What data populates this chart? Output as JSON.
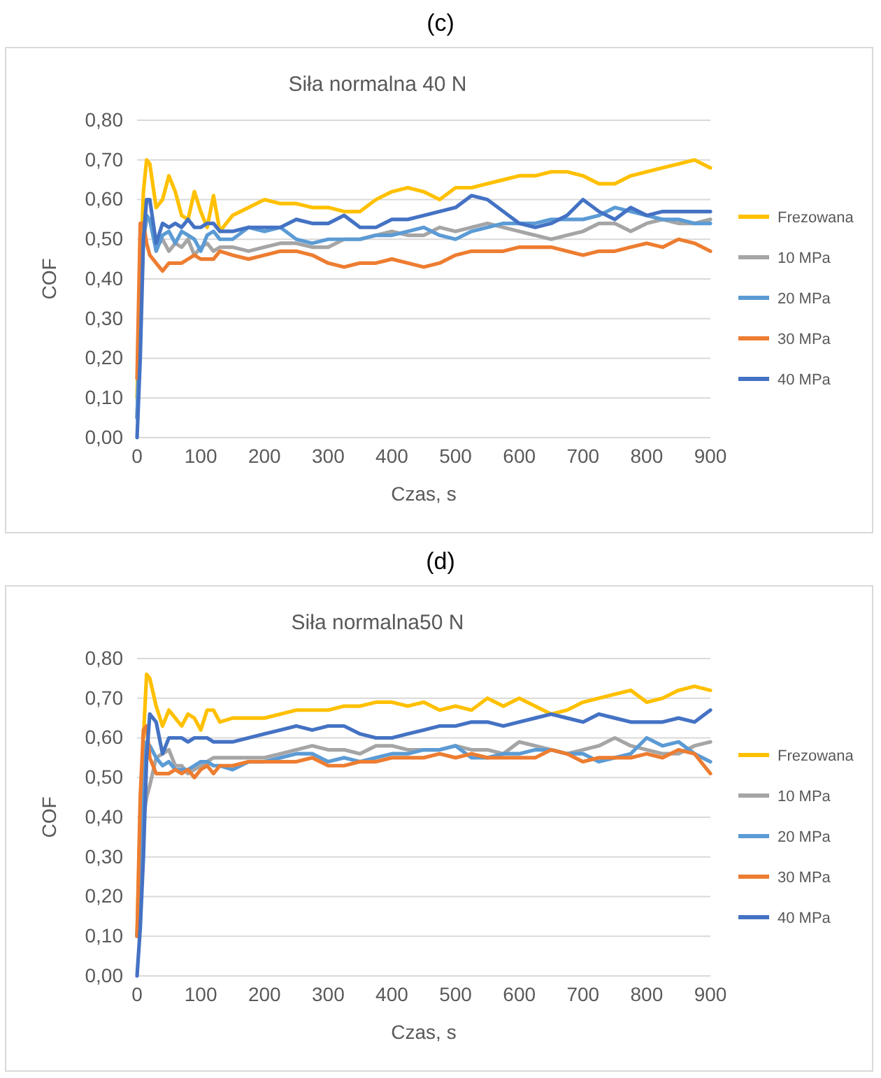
{
  "chart_data": [
    {
      "type": "line",
      "title": "(c)",
      "subtitle": "Siła normalna 40 N",
      "xlabel": "Czas, s",
      "ylabel": "COF",
      "x": [
        0,
        5,
        10,
        15,
        20,
        30,
        40,
        50,
        60,
        70,
        80,
        90,
        100,
        110,
        120,
        130,
        150,
        175,
        200,
        225,
        250,
        275,
        300,
        325,
        350,
        375,
        400,
        425,
        450,
        475,
        500,
        525,
        550,
        575,
        600,
        625,
        650,
        675,
        700,
        725,
        750,
        775,
        800,
        825,
        850,
        875,
        900
      ],
      "series": [
        {
          "name": "Frezowana",
          "color": "#ffc000",
          "values": [
            0.1,
            0.4,
            0.62,
            0.7,
            0.69,
            0.58,
            0.6,
            0.66,
            0.62,
            0.56,
            0.55,
            0.62,
            0.57,
            0.53,
            0.61,
            0.52,
            0.56,
            0.58,
            0.6,
            0.59,
            0.59,
            0.58,
            0.58,
            0.57,
            0.57,
            0.6,
            0.62,
            0.63,
            0.62,
            0.6,
            0.63,
            0.63,
            0.64,
            0.65,
            0.66,
            0.66,
            0.67,
            0.67,
            0.66,
            0.64,
            0.64,
            0.66,
            0.67,
            0.68,
            0.69,
            0.7,
            0.68
          ]
        },
        {
          "name": "10 MPa",
          "color": "#a5a5a5",
          "values": [
            0.05,
            0.3,
            0.5,
            0.55,
            0.55,
            0.48,
            0.5,
            0.47,
            0.49,
            0.48,
            0.5,
            0.46,
            0.48,
            0.49,
            0.47,
            0.48,
            0.48,
            0.47,
            0.48,
            0.49,
            0.49,
            0.48,
            0.48,
            0.5,
            0.5,
            0.51,
            0.52,
            0.51,
            0.51,
            0.53,
            0.52,
            0.53,
            0.54,
            0.53,
            0.52,
            0.51,
            0.5,
            0.51,
            0.52,
            0.54,
            0.54,
            0.52,
            0.54,
            0.55,
            0.54,
            0.54,
            0.55
          ]
        },
        {
          "name": "20 MPa",
          "color": "#5b9bd5",
          "values": [
            0.05,
            0.3,
            0.5,
            0.56,
            0.55,
            0.47,
            0.51,
            0.52,
            0.49,
            0.52,
            0.51,
            0.5,
            0.47,
            0.51,
            0.52,
            0.5,
            0.5,
            0.53,
            0.52,
            0.53,
            0.5,
            0.49,
            0.5,
            0.5,
            0.5,
            0.51,
            0.51,
            0.52,
            0.53,
            0.51,
            0.5,
            0.52,
            0.53,
            0.54,
            0.54,
            0.54,
            0.55,
            0.55,
            0.55,
            0.56,
            0.58,
            0.57,
            0.56,
            0.55,
            0.55,
            0.54,
            0.54
          ]
        },
        {
          "name": "30 MPa",
          "color": "#ed7d31",
          "values": [
            0.15,
            0.54,
            0.54,
            0.49,
            0.46,
            0.44,
            0.42,
            0.44,
            0.44,
            0.44,
            0.45,
            0.46,
            0.45,
            0.45,
            0.45,
            0.47,
            0.46,
            0.45,
            0.46,
            0.47,
            0.47,
            0.46,
            0.44,
            0.43,
            0.44,
            0.44,
            0.45,
            0.44,
            0.43,
            0.44,
            0.46,
            0.47,
            0.47,
            0.47,
            0.48,
            0.48,
            0.48,
            0.47,
            0.46,
            0.47,
            0.47,
            0.48,
            0.49,
            0.48,
            0.5,
            0.49,
            0.47
          ]
        },
        {
          "name": "40 MPa",
          "color": "#4472c4",
          "values": [
            0.0,
            0.2,
            0.5,
            0.6,
            0.6,
            0.49,
            0.54,
            0.53,
            0.54,
            0.53,
            0.55,
            0.53,
            0.53,
            0.54,
            0.54,
            0.52,
            0.52,
            0.53,
            0.53,
            0.53,
            0.55,
            0.54,
            0.54,
            0.56,
            0.53,
            0.53,
            0.55,
            0.55,
            0.56,
            0.57,
            0.58,
            0.61,
            0.6,
            0.57,
            0.54,
            0.53,
            0.54,
            0.56,
            0.6,
            0.57,
            0.55,
            0.58,
            0.56,
            0.57,
            0.57,
            0.57,
            0.57
          ]
        }
      ],
      "xlim": [
        0,
        900
      ],
      "xticks": [
        0,
        100,
        200,
        300,
        400,
        500,
        600,
        700,
        800,
        900
      ],
      "ylim": [
        0,
        0.8
      ],
      "yticks": [
        {
          "value": 0,
          "label": "0,00"
        },
        {
          "value": 0.1,
          "label": "0,10"
        },
        {
          "value": 0.2,
          "label": "0,20"
        },
        {
          "value": 0.3,
          "label": "0,30"
        },
        {
          "value": 0.4,
          "label": "0,40"
        },
        {
          "value": 0.5,
          "label": "0,50"
        },
        {
          "value": 0.6,
          "label": "0,60"
        },
        {
          "value": 0.7,
          "label": "0,70"
        },
        {
          "value": 0.8,
          "label": "0,80"
        }
      ],
      "grid": "y",
      "legend": "right",
      "marker": "none",
      "line_style": "solid"
    },
    {
      "type": "line",
      "title": "(d)",
      "subtitle": "Siła normalna50 N",
      "xlabel": "Czas, s",
      "ylabel": "COF",
      "x": [
        0,
        5,
        10,
        15,
        20,
        30,
        40,
        50,
        60,
        70,
        80,
        90,
        100,
        110,
        120,
        130,
        150,
        175,
        200,
        225,
        250,
        275,
        300,
        325,
        350,
        375,
        400,
        425,
        450,
        475,
        500,
        525,
        550,
        575,
        600,
        625,
        650,
        675,
        700,
        725,
        750,
        775,
        800,
        825,
        850,
        875,
        900
      ],
      "series": [
        {
          "name": "Frezowana",
          "color": "#ffc000",
          "values": [
            0.1,
            0.4,
            0.6,
            0.76,
            0.75,
            0.68,
            0.63,
            0.67,
            0.65,
            0.63,
            0.66,
            0.65,
            0.62,
            0.67,
            0.67,
            0.64,
            0.65,
            0.65,
            0.65,
            0.66,
            0.67,
            0.67,
            0.67,
            0.68,
            0.68,
            0.69,
            0.69,
            0.68,
            0.69,
            0.67,
            0.68,
            0.67,
            0.7,
            0.68,
            0.7,
            0.68,
            0.66,
            0.67,
            0.69,
            0.7,
            0.71,
            0.72,
            0.69,
            0.7,
            0.72,
            0.73,
            0.72
          ]
        },
        {
          "name": "10 MPa",
          "color": "#a5a5a5",
          "values": [
            0.1,
            0.2,
            0.4,
            0.45,
            0.48,
            0.55,
            0.56,
            0.57,
            0.53,
            0.53,
            0.51,
            0.52,
            0.53,
            0.54,
            0.55,
            0.55,
            0.55,
            0.55,
            0.55,
            0.56,
            0.57,
            0.58,
            0.57,
            0.57,
            0.56,
            0.58,
            0.58,
            0.57,
            0.57,
            0.57,
            0.58,
            0.57,
            0.57,
            0.56,
            0.59,
            0.58,
            0.57,
            0.56,
            0.57,
            0.58,
            0.6,
            0.58,
            0.57,
            0.56,
            0.56,
            0.58,
            0.59
          ]
        },
        {
          "name": "20 MPa",
          "color": "#5b9bd5",
          "values": [
            0.1,
            0.3,
            0.5,
            0.59,
            0.58,
            0.55,
            0.53,
            0.54,
            0.52,
            0.52,
            0.52,
            0.53,
            0.54,
            0.54,
            0.53,
            0.53,
            0.52,
            0.54,
            0.54,
            0.55,
            0.56,
            0.56,
            0.54,
            0.55,
            0.54,
            0.55,
            0.56,
            0.56,
            0.57,
            0.57,
            0.58,
            0.55,
            0.55,
            0.56,
            0.56,
            0.57,
            0.57,
            0.56,
            0.56,
            0.54,
            0.55,
            0.56,
            0.6,
            0.58,
            0.59,
            0.56,
            0.54
          ]
        },
        {
          "name": "30 MPa",
          "color": "#ed7d31",
          "values": [
            0.1,
            0.45,
            0.62,
            0.63,
            0.55,
            0.51,
            0.51,
            0.51,
            0.52,
            0.51,
            0.52,
            0.5,
            0.52,
            0.53,
            0.51,
            0.53,
            0.53,
            0.54,
            0.54,
            0.54,
            0.54,
            0.55,
            0.53,
            0.53,
            0.54,
            0.54,
            0.55,
            0.55,
            0.55,
            0.56,
            0.55,
            0.56,
            0.55,
            0.55,
            0.55,
            0.55,
            0.57,
            0.56,
            0.54,
            0.55,
            0.55,
            0.55,
            0.56,
            0.55,
            0.57,
            0.56,
            0.51
          ]
        },
        {
          "name": "40 MPa",
          "color": "#4472c4",
          "values": [
            0.0,
            0.12,
            0.3,
            0.55,
            0.66,
            0.64,
            0.56,
            0.6,
            0.6,
            0.6,
            0.59,
            0.6,
            0.6,
            0.6,
            0.59,
            0.59,
            0.59,
            0.6,
            0.61,
            0.62,
            0.63,
            0.62,
            0.63,
            0.63,
            0.61,
            0.6,
            0.6,
            0.61,
            0.62,
            0.63,
            0.63,
            0.64,
            0.64,
            0.63,
            0.64,
            0.65,
            0.66,
            0.65,
            0.64,
            0.66,
            0.65,
            0.64,
            0.64,
            0.64,
            0.65,
            0.64,
            0.67
          ]
        }
      ],
      "xlim": [
        0,
        900
      ],
      "xticks": [
        0,
        100,
        200,
        300,
        400,
        500,
        600,
        700,
        800,
        900
      ],
      "ylim": [
        0,
        0.8
      ],
      "yticks": [
        {
          "value": 0,
          "label": "0,00"
        },
        {
          "value": 0.1,
          "label": "0,10"
        },
        {
          "value": 0.2,
          "label": "0,20"
        },
        {
          "value": 0.3,
          "label": "0,30"
        },
        {
          "value": 0.4,
          "label": "0,40"
        },
        {
          "value": 0.5,
          "label": "0,50"
        },
        {
          "value": 0.6,
          "label": "0,60"
        },
        {
          "value": 0.7,
          "label": "0,70"
        },
        {
          "value": 0.8,
          "label": "0,80"
        }
      ],
      "grid": "y",
      "legend": "right",
      "marker": "none",
      "line_style": "solid"
    }
  ]
}
